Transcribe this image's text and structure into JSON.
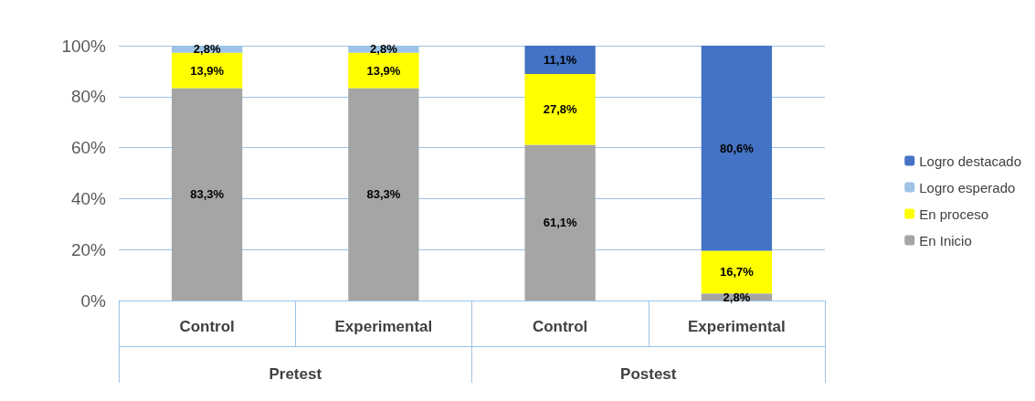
{
  "chart_data": {
    "type": "bar",
    "stacked": true,
    "categories": [
      "Control",
      "Experimental",
      "Control",
      "Experimental"
    ],
    "series": [
      {
        "name": "En Inicio",
        "color": "#a5a5a5",
        "values": [
          83.3,
          83.3,
          61.1,
          2.8
        ],
        "value_labels": [
          "83,3%",
          "83,3%",
          "61,1%",
          "2,8%"
        ]
      },
      {
        "name": "En proceso",
        "color": "#ffff00",
        "values": [
          13.9,
          13.9,
          27.8,
          16.7
        ],
        "value_labels": [
          "13,9%",
          "13,9%",
          "27,8%",
          "16,7%"
        ]
      },
      {
        "name": "Logro esperado",
        "color": "#9dc3e6",
        "values": [
          2.8,
          2.8,
          null,
          null
        ],
        "value_labels": [
          "2,8%",
          "2,8%",
          null,
          null
        ]
      },
      {
        "name": "Logro destacado",
        "color": "#4472c4",
        "values": [
          null,
          null,
          11.1,
          80.6
        ],
        "value_labels": [
          null,
          null,
          "11,1%",
          "80,6%"
        ]
      }
    ],
    "ylim": [
      0,
      100
    ],
    "yticks": [
      {
        "value": 0,
        "label": "0%"
      },
      {
        "value": 20,
        "label": "20%"
      },
      {
        "value": 40,
        "label": "40%"
      },
      {
        "value": 60,
        "label": "60%"
      },
      {
        "value": 80,
        "label": "80%"
      },
      {
        "value": 100,
        "label": "100%"
      }
    ],
    "annotations": [
      "Pretest",
      "Postest"
    ],
    "grid": "y",
    "legend": "right"
  }
}
